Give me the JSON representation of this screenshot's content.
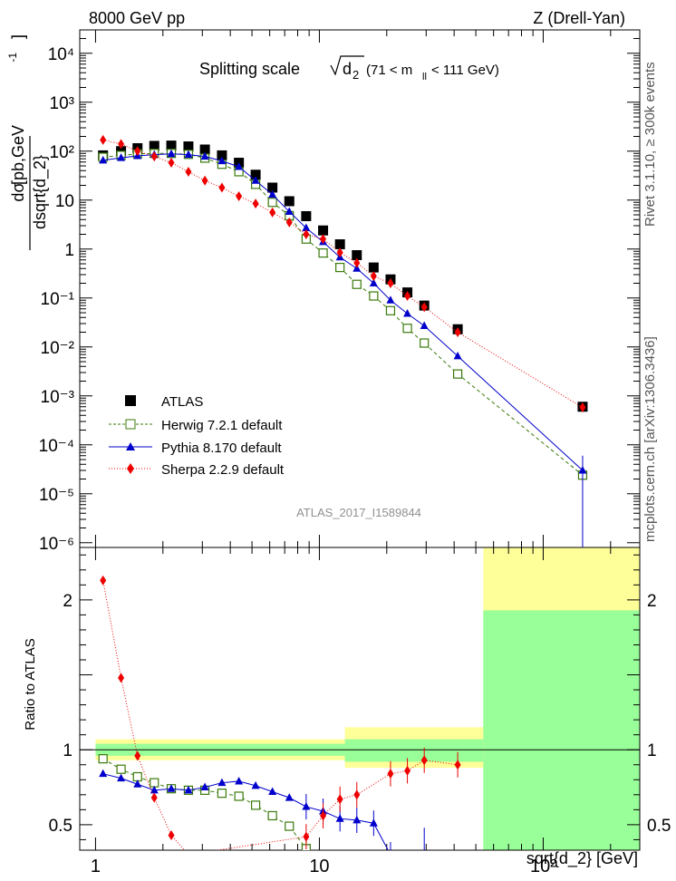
{
  "header": {
    "energy": "8000 GeV pp",
    "process": "Z (Drell-Yan)"
  },
  "side_text": {
    "rivet": "Rivet 3.1.10, ≥ 300k events",
    "mcplots": "mcplots.cern.ch [arXiv:1306.3436]"
  },
  "chart_data": [
    {
      "type": "scatter",
      "panel": "main",
      "title": "Splitting scale √d₂ (71 < mₗₗ < 111 GeV)",
      "title_main": "Splitting scale",
      "title_d": "d",
      "title_sub": "2",
      "title_range": "(71 < m",
      "title_range_sub": "ll",
      "title_range_end": "< 111 GeV)",
      "ylabel_num": "dσ",
      "ylabel_den": "dsqrt{d_2}",
      "ylabel_units": "[pb,GeV",
      "ylabel_units_sup": "-1",
      "ylabel_units_end": "]",
      "x_scale": "log",
      "y_scale": "log",
      "xlim": [
        0.85,
        270
      ],
      "ylim": [
        8e-07,
        30000
      ],
      "y_tick_labels": [
        "10⁻⁶",
        "10⁻⁵",
        "10⁻⁴",
        "10⁻³",
        "10⁻²",
        "10⁻¹",
        "1",
        "10",
        "10²",
        "10³",
        "10⁴"
      ],
      "watermark": "ATLAS_2017_I1589844",
      "legend_position": "lower-left",
      "series": [
        {
          "name": "ATLAS",
          "color": "#000000",
          "marker": "square-filled",
          "x": [
            1.08,
            1.3,
            1.54,
            1.83,
            2.18,
            2.6,
            3.08,
            3.67,
            4.37,
            5.19,
            6.17,
            7.34,
            8.73,
            10.39,
            12.36,
            14.7,
            17.48,
            20.79,
            24.73,
            29.42,
            41.5,
            150
          ],
          "y": [
            82,
            100,
            115,
            128,
            130,
            125,
            108,
            82,
            58,
            33,
            18,
            9.5,
            4.7,
            2.4,
            1.25,
            0.75,
            0.42,
            0.24,
            0.13,
            0.07,
            0.023,
            0.0006
          ]
        },
        {
          "name": "Herwig 7.2.1 default",
          "color": "#3a7a0a",
          "marker": "square-open",
          "line": "dashed",
          "x": [
            1.08,
            1.3,
            1.54,
            1.83,
            2.18,
            2.6,
            3.08,
            3.67,
            4.37,
            5.19,
            6.17,
            7.34,
            8.73,
            10.39,
            12.36,
            14.7,
            17.48,
            20.79,
            24.73,
            29.42,
            41.5,
            150
          ],
          "y": [
            75,
            82,
            88,
            90,
            90,
            86,
            72,
            54,
            38,
            21,
            9.0,
            4.8,
            1.6,
            0.83,
            0.42,
            0.19,
            0.11,
            0.055,
            0.024,
            0.012,
            0.0028,
            2.4e-05
          ]
        },
        {
          "name": "Pythia 8.170 default",
          "color": "#0000cc",
          "marker": "triangle",
          "line": "solid",
          "x": [
            1.08,
            1.3,
            1.54,
            1.83,
            2.18,
            2.6,
            3.08,
            3.67,
            4.37,
            5.19,
            6.17,
            7.34,
            8.73,
            10.39,
            12.36,
            14.7,
            17.48,
            20.79,
            24.73,
            29.42,
            41.5,
            150
          ],
          "y": [
            65,
            73,
            80,
            85,
            88,
            85,
            78,
            63,
            48,
            25,
            13,
            5.8,
            2.7,
            1.4,
            0.68,
            0.4,
            0.2,
            0.09,
            0.048,
            0.027,
            0.0065,
            3e-05
          ]
        },
        {
          "name": "Sherpa 2.2.9 default",
          "color": "#ee0000",
          "marker": "diamond",
          "line": "dotted",
          "x": [
            1.08,
            1.3,
            1.54,
            1.83,
            2.18,
            2.6,
            3.08,
            3.67,
            4.37,
            5.19,
            6.17,
            7.34,
            8.73,
            10.39,
            12.36,
            14.7,
            17.48,
            20.79,
            24.73,
            29.42,
            41.5,
            150
          ],
          "y": [
            170,
            140,
            100,
            78,
            58,
            38,
            25,
            18,
            12,
            8.5,
            5.6,
            3.5,
            2.0,
            1.6,
            0.85,
            0.52,
            0.28,
            0.2,
            0.11,
            0.065,
            0.02,
            0.00058
          ]
        }
      ]
    },
    {
      "type": "line",
      "panel": "ratio",
      "ylabel": "Ratio to ATLAS",
      "xlabel": "sqrt{d_2} [GeV]",
      "x_scale": "log",
      "xlim": [
        0.85,
        270
      ],
      "ylim": [
        0.33,
        2.35
      ],
      "x_tick_labels": [
        "1",
        "10",
        "10²"
      ],
      "y_tick_labels": [
        "0.5",
        "1",
        "2"
      ],
      "band_colors": {
        "stat": "#99ff99",
        "total": "#ffff99"
      },
      "bands": [
        {
          "x0": 1.0,
          "x1": 54,
          "tot": [
            0.93,
            1.07
          ],
          "stat": [
            0.96,
            1.04
          ]
        },
        {
          "x0": 13,
          "x1": 54,
          "tot": [
            0.88,
            1.15
          ],
          "stat": [
            0.92,
            1.07
          ]
        },
        {
          "x0": 54,
          "x1": 270,
          "tot": [
            0.33,
            2.35
          ],
          "stat": [
            0.33,
            1.93
          ]
        }
      ],
      "series": [
        {
          "name": "Herwig 7.2.1 default",
          "color": "#3a7a0a",
          "marker": "square-open",
          "line": "dashed",
          "x": [
            1.08,
            1.3,
            1.54,
            1.83,
            2.18,
            2.6,
            3.08,
            3.67,
            4.37,
            5.19,
            6.17,
            7.34,
            8.73
          ],
          "y": [
            0.94,
            0.87,
            0.82,
            0.78,
            0.74,
            0.73,
            0.73,
            0.71,
            0.69,
            0.63,
            0.56,
            0.49,
            0.34
          ]
        },
        {
          "name": "Pythia 8.170 default",
          "color": "#0000cc",
          "marker": "triangle",
          "line": "solid",
          "x": [
            1.08,
            1.3,
            1.54,
            1.83,
            2.18,
            2.6,
            3.08,
            3.67,
            4.37,
            5.19,
            6.17,
            7.34,
            8.73,
            10.39,
            12.36,
            14.7,
            17.48,
            20.79
          ],
          "y": [
            0.84,
            0.81,
            0.77,
            0.73,
            0.74,
            0.73,
            0.75,
            0.78,
            0.79,
            0.76,
            0.72,
            0.68,
            0.62,
            0.59,
            0.54,
            0.53,
            0.51,
            0.3
          ]
        },
        {
          "name": "Sherpa 2.2.9 default",
          "color": "#ee0000",
          "marker": "diamond",
          "line": "dotted",
          "x": [
            1.08,
            1.3,
            1.54,
            1.83,
            2.18,
            2.6,
            8.73,
            10.39,
            12.36,
            14.7,
            20.79,
            24.73,
            29.42,
            41.5
          ],
          "y": [
            2.13,
            1.48,
            0.96,
            0.68,
            0.43,
            0.3,
            0.42,
            0.56,
            0.67,
            0.7,
            0.84,
            0.86,
            0.93,
            0.9
          ]
        }
      ]
    }
  ]
}
